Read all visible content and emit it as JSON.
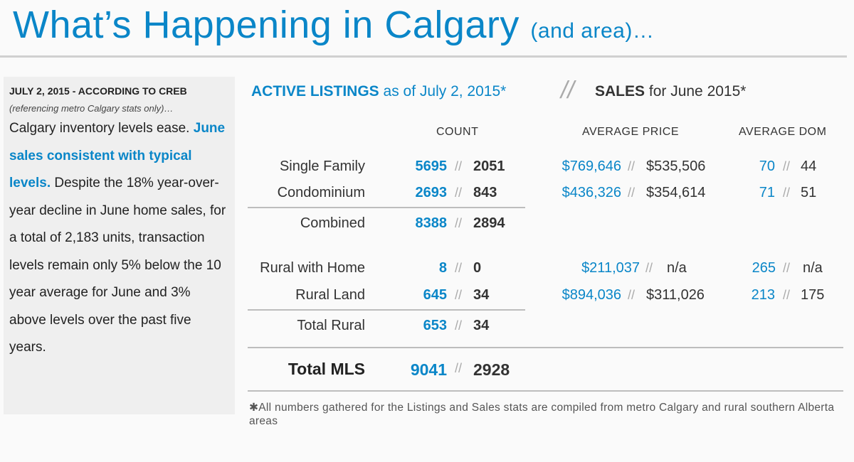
{
  "header": {
    "title": "What’s Happening in Calgary",
    "title_suffix": "(and area)…"
  },
  "sidebar": {
    "kicker": "JULY 2, 2015 - ACCORDING TO CREB",
    "sub": "(referencing metro Calgary stats only)…",
    "lead": "Calgary inventory levels ease.",
    "highlight": "June sales consistent with typical levels.",
    "body": "Despite the 18% year-over-year decline in June home sales, for a total of 2,183 units, transaction levels remain only 5% below the 10 year average for June and 3% above levels over the past five years."
  },
  "headings": {
    "listings_bold": "ACTIVE LISTINGS",
    "listings_rest": "as of July 2, 2015*",
    "divider": "//",
    "sales_bold": "SALES",
    "sales_rest": "for June 2015*"
  },
  "columns": {
    "count": "COUNT",
    "price": "AVERAGE PRICE",
    "dom": "AVERAGE DOM"
  },
  "separator": "//",
  "rows": [
    {
      "label": "Single Family",
      "count_listings": "5695",
      "count_sales": "2051",
      "price_listings": "$769,646",
      "price_sales": "$535,506",
      "dom_listings": "70",
      "dom_sales": "44"
    },
    {
      "label": "Condominium",
      "count_listings": "2693",
      "count_sales": "843",
      "price_listings": "$436,326",
      "price_sales": "$354,614",
      "dom_listings": "71",
      "dom_sales": "51"
    },
    {
      "label": "Combined",
      "count_listings": "8388",
      "count_sales": "2894"
    },
    {
      "label": "Rural with Home",
      "count_listings": "8",
      "count_sales": "0",
      "price_listings": "$211,037",
      "price_sales": "n/a",
      "dom_listings": "265",
      "dom_sales": "n/a"
    },
    {
      "label": "Rural Land",
      "count_listings": "645",
      "count_sales": "34",
      "price_listings": "$894,036",
      "price_sales": "$311,026",
      "dom_listings": "213",
      "dom_sales": "175"
    },
    {
      "label": "Total Rural",
      "count_listings": "653",
      "count_sales": "34"
    },
    {
      "label": "Total MLS",
      "count_listings": "9041",
      "count_sales": "2928"
    }
  ],
  "footnote": "✱All numbers gathered for the Listings and Sales stats are compiled from metro Calgary and rural southern Alberta areas",
  "colors": {
    "accent": "#0a86c8",
    "text": "#333333",
    "panel": "#efefef"
  }
}
